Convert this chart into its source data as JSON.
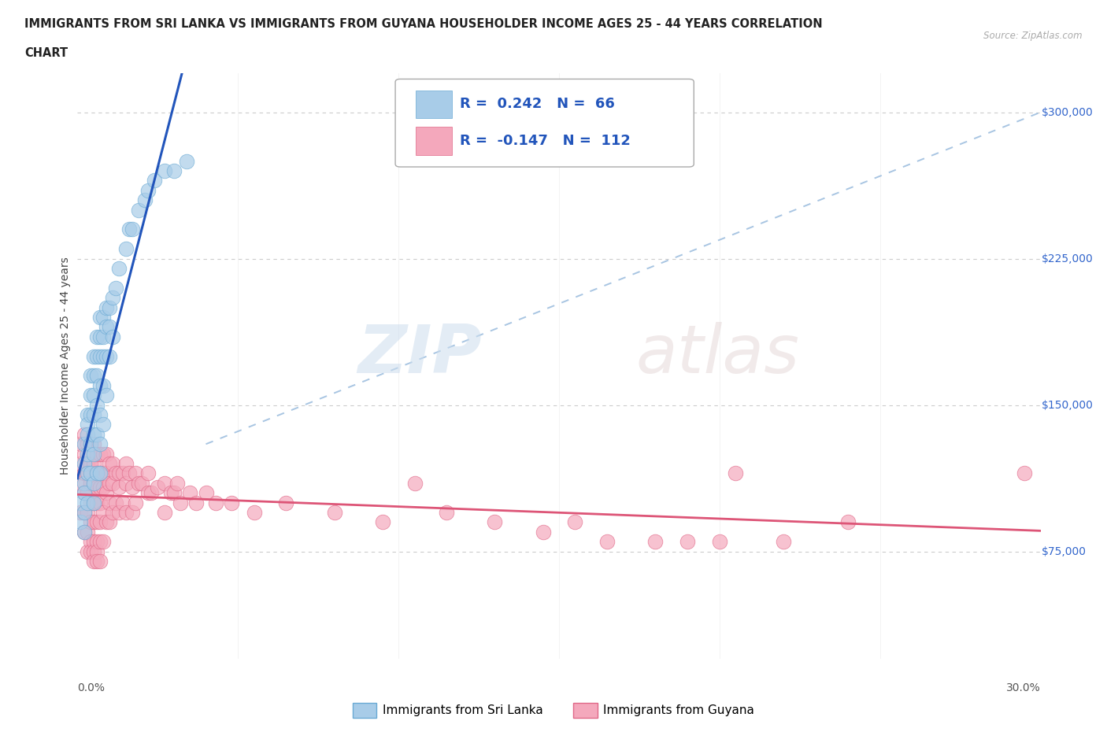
{
  "title_line1": "IMMIGRANTS FROM SRI LANKA VS IMMIGRANTS FROM GUYANA HOUSEHOLDER INCOME AGES 25 - 44 YEARS CORRELATION",
  "title_line2": "CHART",
  "source_text": "Source: ZipAtlas.com",
  "ylabel": "Householder Income Ages 25 - 44 years",
  "y_ticks": [
    75000,
    150000,
    225000,
    300000
  ],
  "y_tick_labels": [
    "$75,000",
    "$150,000",
    "$225,000",
    "$300,000"
  ],
  "x_min": 0.0,
  "x_max": 0.3,
  "y_min": 20000,
  "y_max": 320000,
  "sri_lanka_color": "#a8cce8",
  "sri_lanka_edge": "#6aaad4",
  "guyana_color": "#f4a8bc",
  "guyana_edge": "#e06888",
  "trend_sri_lanka_color": "#2255bb",
  "trend_guyana_color": "#dd5577",
  "dashed_color": "#99bbdd",
  "watermark_zip": "ZIP",
  "watermark_atlas": "atlas",
  "legend_sri_lanka": "Immigrants from Sri Lanka",
  "legend_guyana": "Immigrants from Guyana",
  "sri_lanka_R": "0.242",
  "sri_lanka_N": "66",
  "guyana_R": "-0.147",
  "guyana_N": "112",
  "sl_x": [
    0.001,
    0.001,
    0.002,
    0.002,
    0.002,
    0.002,
    0.002,
    0.002,
    0.003,
    0.003,
    0.003,
    0.003,
    0.003,
    0.003,
    0.004,
    0.004,
    0.004,
    0.004,
    0.004,
    0.005,
    0.005,
    0.005,
    0.005,
    0.005,
    0.005,
    0.005,
    0.005,
    0.006,
    0.006,
    0.006,
    0.006,
    0.006,
    0.006,
    0.007,
    0.007,
    0.007,
    0.007,
    0.007,
    0.007,
    0.007,
    0.008,
    0.008,
    0.008,
    0.008,
    0.008,
    0.009,
    0.009,
    0.009,
    0.009,
    0.01,
    0.01,
    0.01,
    0.011,
    0.011,
    0.012,
    0.013,
    0.015,
    0.016,
    0.017,
    0.019,
    0.021,
    0.022,
    0.024,
    0.027,
    0.03,
    0.034
  ],
  "sl_y": [
    100000,
    90000,
    130000,
    120000,
    110000,
    105000,
    95000,
    85000,
    145000,
    140000,
    135000,
    125000,
    115000,
    100000,
    165000,
    155000,
    145000,
    130000,
    115000,
    175000,
    165000,
    155000,
    145000,
    135000,
    125000,
    110000,
    100000,
    185000,
    175000,
    165000,
    150000,
    135000,
    115000,
    195000,
    185000,
    175000,
    160000,
    145000,
    130000,
    115000,
    195000,
    185000,
    175000,
    160000,
    140000,
    200000,
    190000,
    175000,
    155000,
    200000,
    190000,
    175000,
    205000,
    185000,
    210000,
    220000,
    230000,
    240000,
    240000,
    250000,
    255000,
    260000,
    265000,
    270000,
    270000,
    275000
  ],
  "gy_x": [
    0.001,
    0.001,
    0.001,
    0.001,
    0.002,
    0.002,
    0.002,
    0.002,
    0.002,
    0.002,
    0.003,
    0.003,
    0.003,
    0.003,
    0.003,
    0.003,
    0.003,
    0.004,
    0.004,
    0.004,
    0.004,
    0.004,
    0.004,
    0.004,
    0.005,
    0.005,
    0.005,
    0.005,
    0.005,
    0.005,
    0.005,
    0.005,
    0.006,
    0.006,
    0.006,
    0.006,
    0.006,
    0.006,
    0.006,
    0.006,
    0.007,
    0.007,
    0.007,
    0.007,
    0.007,
    0.007,
    0.007,
    0.008,
    0.008,
    0.008,
    0.008,
    0.008,
    0.009,
    0.009,
    0.009,
    0.009,
    0.01,
    0.01,
    0.01,
    0.01,
    0.011,
    0.011,
    0.011,
    0.012,
    0.012,
    0.013,
    0.013,
    0.013,
    0.014,
    0.014,
    0.015,
    0.015,
    0.015,
    0.016,
    0.017,
    0.017,
    0.018,
    0.018,
    0.019,
    0.02,
    0.022,
    0.022,
    0.023,
    0.025,
    0.027,
    0.027,
    0.029,
    0.03,
    0.031,
    0.032,
    0.035,
    0.037,
    0.04,
    0.043,
    0.048,
    0.055,
    0.065,
    0.08,
    0.095,
    0.105,
    0.115,
    0.13,
    0.145,
    0.155,
    0.165,
    0.18,
    0.19,
    0.2,
    0.205,
    0.22,
    0.24,
    0.295
  ],
  "gy_y": [
    130000,
    120000,
    110000,
    95000,
    135000,
    125000,
    115000,
    105000,
    95000,
    85000,
    130000,
    120000,
    115000,
    105000,
    95000,
    85000,
    75000,
    130000,
    120000,
    110000,
    100000,
    90000,
    80000,
    75000,
    130000,
    120000,
    110000,
    100000,
    90000,
    80000,
    75000,
    70000,
    125000,
    115000,
    108000,
    100000,
    90000,
    80000,
    75000,
    70000,
    125000,
    115000,
    108000,
    100000,
    90000,
    80000,
    70000,
    125000,
    115000,
    108000,
    95000,
    80000,
    125000,
    115000,
    105000,
    90000,
    120000,
    110000,
    100000,
    90000,
    120000,
    110000,
    95000,
    115000,
    100000,
    115000,
    108000,
    95000,
    115000,
    100000,
    120000,
    110000,
    95000,
    115000,
    108000,
    95000,
    115000,
    100000,
    110000,
    110000,
    115000,
    105000,
    105000,
    108000,
    110000,
    95000,
    105000,
    105000,
    110000,
    100000,
    105000,
    100000,
    105000,
    100000,
    100000,
    95000,
    100000,
    95000,
    90000,
    110000,
    95000,
    90000,
    85000,
    90000,
    80000,
    80000,
    80000,
    80000,
    115000,
    80000,
    90000,
    115000
  ]
}
